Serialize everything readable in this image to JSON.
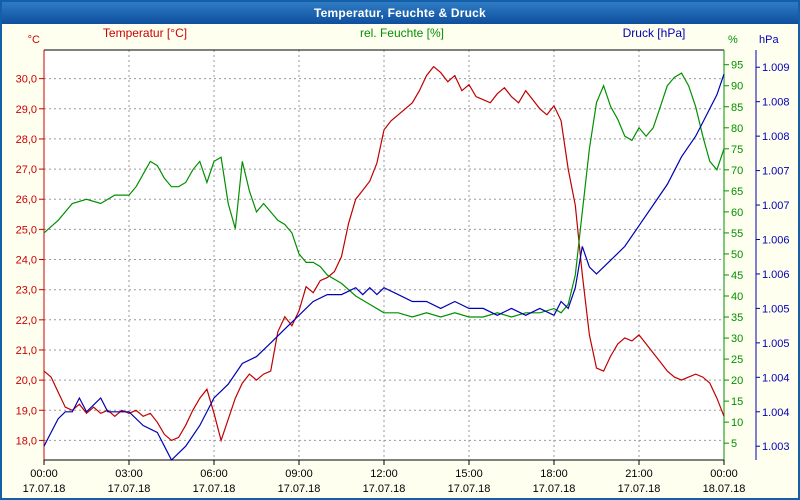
{
  "window": {
    "title": "Temperatur, Feuchte & Druck"
  },
  "chart_data": {
    "type": "line",
    "title": "Temperatur, Feuchte & Druck",
    "background": "#fffff0",
    "plot_background": "#ffffff",
    "grid": {
      "show": true,
      "color": "#9a9a9a",
      "style": "dashed"
    },
    "x_axis": {
      "range": [
        0,
        24
      ],
      "tick_hours": [
        0,
        3,
        6,
        9,
        12,
        15,
        18,
        21,
        24
      ],
      "tick_labels": [
        "00:00",
        "03:00",
        "06:00",
        "09:00",
        "12:00",
        "15:00",
        "18:00",
        "21:00",
        "00:00"
      ],
      "date_labels": [
        "17.07.18",
        "17.07.18",
        "17.07.18",
        "17.07.18",
        "17.07.18",
        "17.07.18",
        "17.07.18",
        "17.07.18",
        "18.07.18"
      ],
      "color": "#000000"
    },
    "axes": {
      "temperature": {
        "label": "Temperatur [°C]",
        "unit": "°C",
        "color": "#cc0000",
        "side": "left",
        "range": [
          17.35,
          30.95
        ],
        "tick_values": [
          18,
          19,
          20,
          21,
          22,
          23,
          24,
          25,
          26,
          27,
          28,
          29,
          30
        ],
        "tick_labels": [
          "18,0",
          "19,0",
          "20,0",
          "21,0",
          "22,0",
          "23,0",
          "24,0",
          "25,0",
          "26,0",
          "27,0",
          "28,0",
          "29,0",
          "30,0"
        ]
      },
      "humidity": {
        "label": "rel. Feuchte [%]",
        "unit": "%",
        "color": "#009000",
        "side": "right",
        "range": [
          1.0,
          98.5
        ],
        "tick_values": [
          5,
          10,
          15,
          20,
          25,
          30,
          35,
          40,
          45,
          50,
          55,
          60,
          65,
          70,
          75,
          80,
          85,
          90,
          95
        ],
        "tick_labels": [
          "5",
          "10",
          "15",
          "20",
          "25",
          "30",
          "35",
          "40",
          "45",
          "50",
          "55",
          "60",
          "65",
          "70",
          "75",
          "80",
          "85",
          "90",
          "95"
        ]
      },
      "pressure": {
        "label": "Druck [hPa]",
        "unit": "hPa",
        "color": "#0000b4",
        "side": "right-outer",
        "range": [
          1.0033,
          1.00925
        ],
        "tick_values": [
          1.0035,
          1.004,
          1.0045,
          1.005,
          1.0055,
          1.006,
          1.0065,
          1.007,
          1.0075,
          1.008,
          1.0085,
          1.009
        ],
        "tick_labels": [
          "1.003",
          "1.004",
          "1.004",
          "1.005",
          "1.005",
          "1.006",
          "1.006",
          "1.007",
          "1.007",
          "1.008",
          "1.008",
          "1.009"
        ]
      }
    },
    "series": [
      {
        "name": "Temperatur [°C]",
        "axis": "temperature",
        "color": "#c00000",
        "points": [
          [
            0,
            20.3
          ],
          [
            0.25,
            20.1
          ],
          [
            0.5,
            19.6
          ],
          [
            0.75,
            19.1
          ],
          [
            1,
            19.0
          ],
          [
            1.25,
            19.2
          ],
          [
            1.5,
            18.9
          ],
          [
            1.75,
            19.1
          ],
          [
            2,
            18.9
          ],
          [
            2.25,
            19.0
          ],
          [
            2.5,
            18.8
          ],
          [
            2.75,
            19.0
          ],
          [
            3,
            18.9
          ],
          [
            3.25,
            19.0
          ],
          [
            3.5,
            18.8
          ],
          [
            3.75,
            18.9
          ],
          [
            4,
            18.6
          ],
          [
            4.25,
            18.2
          ],
          [
            4.5,
            18.0
          ],
          [
            4.75,
            18.1
          ],
          [
            5,
            18.5
          ],
          [
            5.25,
            19.0
          ],
          [
            5.5,
            19.4
          ],
          [
            5.75,
            19.7
          ],
          [
            6,
            18.9
          ],
          [
            6.25,
            18.0
          ],
          [
            6.5,
            18.7
          ],
          [
            6.75,
            19.4
          ],
          [
            7,
            19.9
          ],
          [
            7.25,
            20.2
          ],
          [
            7.5,
            20.0
          ],
          [
            7.75,
            20.2
          ],
          [
            8,
            20.3
          ],
          [
            8.25,
            21.6
          ],
          [
            8.5,
            22.1
          ],
          [
            8.75,
            21.8
          ],
          [
            9,
            22.3
          ],
          [
            9.25,
            23.1
          ],
          [
            9.5,
            22.9
          ],
          [
            9.75,
            23.3
          ],
          [
            10,
            23.4
          ],
          [
            10.25,
            23.6
          ],
          [
            10.5,
            24.1
          ],
          [
            10.75,
            25.2
          ],
          [
            11,
            26.0
          ],
          [
            11.25,
            26.3
          ],
          [
            11.5,
            26.6
          ],
          [
            11.75,
            27.2
          ],
          [
            12,
            28.3
          ],
          [
            12.25,
            28.6
          ],
          [
            12.5,
            28.8
          ],
          [
            12.75,
            29.0
          ],
          [
            13,
            29.2
          ],
          [
            13.25,
            29.6
          ],
          [
            13.5,
            30.1
          ],
          [
            13.75,
            30.4
          ],
          [
            14,
            30.2
          ],
          [
            14.25,
            29.9
          ],
          [
            14.5,
            30.1
          ],
          [
            14.75,
            29.6
          ],
          [
            15,
            29.8
          ],
          [
            15.25,
            29.4
          ],
          [
            15.5,
            29.3
          ],
          [
            15.75,
            29.2
          ],
          [
            16,
            29.5
          ],
          [
            16.25,
            29.7
          ],
          [
            16.5,
            29.4
          ],
          [
            16.75,
            29.2
          ],
          [
            17,
            29.6
          ],
          [
            17.25,
            29.3
          ],
          [
            17.5,
            29.0
          ],
          [
            17.75,
            28.8
          ],
          [
            18,
            29.1
          ],
          [
            18.25,
            28.6
          ],
          [
            18.5,
            27.0
          ],
          [
            18.75,
            25.8
          ],
          [
            19,
            23.5
          ],
          [
            19.25,
            21.5
          ],
          [
            19.5,
            20.4
          ],
          [
            19.75,
            20.3
          ],
          [
            20,
            20.8
          ],
          [
            20.25,
            21.2
          ],
          [
            20.5,
            21.4
          ],
          [
            20.75,
            21.3
          ],
          [
            21,
            21.5
          ],
          [
            21.25,
            21.2
          ],
          [
            21.5,
            20.9
          ],
          [
            21.75,
            20.6
          ],
          [
            22,
            20.3
          ],
          [
            22.25,
            20.1
          ],
          [
            22.5,
            20.0
          ],
          [
            22.75,
            20.1
          ],
          [
            23,
            20.2
          ],
          [
            23.25,
            20.1
          ],
          [
            23.5,
            19.9
          ],
          [
            23.75,
            19.4
          ],
          [
            24,
            18.8
          ]
        ]
      },
      {
        "name": "rel. Feuchte [%]",
        "axis": "humidity",
        "color": "#009000",
        "points": [
          [
            0,
            55
          ],
          [
            0.5,
            58
          ],
          [
            1,
            62
          ],
          [
            1.5,
            63
          ],
          [
            2,
            62
          ],
          [
            2.5,
            64
          ],
          [
            3,
            64
          ],
          [
            3.25,
            66
          ],
          [
            3.5,
            69
          ],
          [
            3.75,
            72
          ],
          [
            4,
            71
          ],
          [
            4.25,
            68
          ],
          [
            4.5,
            66
          ],
          [
            4.75,
            66
          ],
          [
            5,
            67
          ],
          [
            5.25,
            70
          ],
          [
            5.5,
            72
          ],
          [
            5.75,
            67
          ],
          [
            6,
            72
          ],
          [
            6.25,
            73
          ],
          [
            6.5,
            62
          ],
          [
            6.75,
            56
          ],
          [
            7,
            72
          ],
          [
            7.25,
            65
          ],
          [
            7.5,
            60
          ],
          [
            7.75,
            62
          ],
          [
            8,
            60
          ],
          [
            8.25,
            58
          ],
          [
            8.5,
            57
          ],
          [
            8.75,
            55
          ],
          [
            9,
            50
          ],
          [
            9.25,
            48
          ],
          [
            9.5,
            48
          ],
          [
            9.75,
            47
          ],
          [
            10,
            45
          ],
          [
            10.5,
            43
          ],
          [
            11,
            40
          ],
          [
            11.5,
            38
          ],
          [
            12,
            36
          ],
          [
            12.5,
            36
          ],
          [
            13,
            35
          ],
          [
            13.5,
            36
          ],
          [
            14,
            35
          ],
          [
            14.5,
            36
          ],
          [
            15,
            35
          ],
          [
            15.5,
            35
          ],
          [
            16,
            36
          ],
          [
            16.5,
            35
          ],
          [
            17,
            36
          ],
          [
            17.5,
            36
          ],
          [
            18,
            37
          ],
          [
            18.25,
            36
          ],
          [
            18.5,
            38
          ],
          [
            18.75,
            45
          ],
          [
            19,
            60
          ],
          [
            19.25,
            75
          ],
          [
            19.5,
            86
          ],
          [
            19.75,
            90
          ],
          [
            20,
            85
          ],
          [
            20.25,
            82
          ],
          [
            20.5,
            78
          ],
          [
            20.75,
            77
          ],
          [
            21,
            80
          ],
          [
            21.25,
            78
          ],
          [
            21.5,
            80
          ],
          [
            21.75,
            85
          ],
          [
            22,
            90
          ],
          [
            22.25,
            92
          ],
          [
            22.5,
            93
          ],
          [
            22.75,
            90
          ],
          [
            23,
            85
          ],
          [
            23.25,
            78
          ],
          [
            23.5,
            72
          ],
          [
            23.75,
            70
          ],
          [
            24,
            75
          ]
        ]
      },
      {
        "name": "Druck [hPa]",
        "axis": "pressure",
        "color": "#0000b4",
        "points": [
          [
            0,
            1.0035
          ],
          [
            0.25,
            1.0037
          ],
          [
            0.5,
            1.0039
          ],
          [
            0.75,
            1.004
          ],
          [
            1,
            1.004
          ],
          [
            1.25,
            1.0042
          ],
          [
            1.5,
            1.004
          ],
          [
            1.75,
            1.0041
          ],
          [
            2,
            1.0042
          ],
          [
            2.25,
            1.004
          ],
          [
            2.5,
            1.004
          ],
          [
            3,
            1.004
          ],
          [
            3.5,
            1.0038
          ],
          [
            4,
            1.0037
          ],
          [
            4.25,
            1.0035
          ],
          [
            4.5,
            1.0033
          ],
          [
            5,
            1.0035
          ],
          [
            5.5,
            1.0038
          ],
          [
            6,
            1.0042
          ],
          [
            6.5,
            1.0044
          ],
          [
            7,
            1.0047
          ],
          [
            7.5,
            1.0048
          ],
          [
            8,
            1.005
          ],
          [
            8.5,
            1.0052
          ],
          [
            9,
            1.0054
          ],
          [
            9.5,
            1.0056
          ],
          [
            10,
            1.0057
          ],
          [
            10.5,
            1.0057
          ],
          [
            11,
            1.0058
          ],
          [
            11.25,
            1.0057
          ],
          [
            11.5,
            1.0058
          ],
          [
            11.75,
            1.0057
          ],
          [
            12,
            1.0058
          ],
          [
            12.5,
            1.0057
          ],
          [
            13,
            1.0056
          ],
          [
            13.5,
            1.0056
          ],
          [
            14,
            1.0055
          ],
          [
            14.5,
            1.0056
          ],
          [
            15,
            1.0055
          ],
          [
            15.5,
            1.0055
          ],
          [
            16,
            1.0054
          ],
          [
            16.5,
            1.0055
          ],
          [
            17,
            1.0054
          ],
          [
            17.5,
            1.0055
          ],
          [
            18,
            1.0054
          ],
          [
            18.25,
            1.0056
          ],
          [
            18.5,
            1.0055
          ],
          [
            18.75,
            1.0058
          ],
          [
            19,
            1.0064
          ],
          [
            19.25,
            1.0061
          ],
          [
            19.5,
            1.006
          ],
          [
            19.75,
            1.0061
          ],
          [
            20,
            1.0062
          ],
          [
            20.5,
            1.0064
          ],
          [
            21,
            1.0067
          ],
          [
            21.5,
            1.007
          ],
          [
            22,
            1.0073
          ],
          [
            22.5,
            1.0077
          ],
          [
            23,
            1.008
          ],
          [
            23.25,
            1.0082
          ],
          [
            23.5,
            1.0084
          ],
          [
            23.75,
            1.0086
          ],
          [
            24,
            1.0089
          ]
        ]
      }
    ]
  }
}
